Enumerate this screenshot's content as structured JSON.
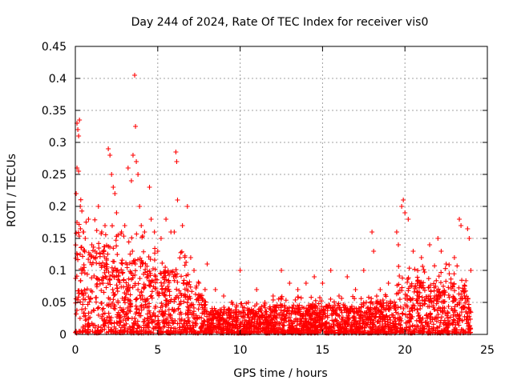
{
  "chart_data": {
    "type": "scatter",
    "title": "Day 244 of 2024, Rate Of TEC Index for receiver vis0",
    "xlabel": "GPS time / hours",
    "ylabel": "ROTI / TECUs",
    "xlim": [
      0,
      25
    ],
    "ylim": [
      0,
      0.45
    ],
    "xticks": [
      0,
      5,
      10,
      15,
      20,
      25
    ],
    "xtick_labels": [
      "0",
      "5",
      "10",
      "15",
      "20",
      "25"
    ],
    "yticks": [
      0,
      0.05,
      0.1,
      0.15,
      0.2,
      0.25,
      0.3,
      0.35,
      0.4,
      0.45
    ],
    "ytick_labels": [
      "0",
      "0.05",
      "0.1",
      "0.15",
      "0.2",
      "0.25",
      "0.3",
      "0.35",
      "0.4",
      "0.45"
    ],
    "grid": true,
    "marker": "+",
    "color": "#ff0000",
    "series": [
      {
        "name": "ROTI",
        "points": [
          [
            0.1,
            0.33
          ],
          [
            0.15,
            0.32
          ],
          [
            0.2,
            0.31
          ],
          [
            0.25,
            0.335
          ],
          [
            0.1,
            0.26
          ],
          [
            0.2,
            0.255
          ],
          [
            0.05,
            0.22
          ],
          [
            0.3,
            0.2
          ],
          [
            0.1,
            0.175
          ],
          [
            0.5,
            0.16
          ],
          [
            0.6,
            0.15
          ],
          [
            0.8,
            0.18
          ],
          [
            1.0,
            0.14
          ],
          [
            1.2,
            0.13
          ],
          [
            1.4,
            0.2
          ],
          [
            1.6,
            0.16
          ],
          [
            1.8,
            0.17
          ],
          [
            2.0,
            0.29
          ],
          [
            2.1,
            0.28
          ],
          [
            2.2,
            0.25
          ],
          [
            2.3,
            0.23
          ],
          [
            2.4,
            0.22
          ],
          [
            2.5,
            0.19
          ],
          [
            2.8,
            0.16
          ],
          [
            3.0,
            0.17
          ],
          [
            3.2,
            0.26
          ],
          [
            3.4,
            0.24
          ],
          [
            3.5,
            0.28
          ],
          [
            3.6,
            0.405
          ],
          [
            3.65,
            0.325
          ],
          [
            3.7,
            0.27
          ],
          [
            3.8,
            0.25
          ],
          [
            3.9,
            0.2
          ],
          [
            4.0,
            0.17
          ],
          [
            4.2,
            0.16
          ],
          [
            4.5,
            0.23
          ],
          [
            4.6,
            0.18
          ],
          [
            4.8,
            0.16
          ],
          [
            5.0,
            0.13
          ],
          [
            5.2,
            0.15
          ],
          [
            5.5,
            0.18
          ],
          [
            5.8,
            0.16
          ],
          [
            6.0,
            0.16
          ],
          [
            6.1,
            0.285
          ],
          [
            6.15,
            0.27
          ],
          [
            6.2,
            0.21
          ],
          [
            6.5,
            0.17
          ],
          [
            6.8,
            0.2
          ],
          [
            7.0,
            0.12
          ],
          [
            7.2,
            0.1
          ],
          [
            7.5,
            0.08
          ],
          [
            8.0,
            0.11
          ],
          [
            8.5,
            0.07
          ],
          [
            9.0,
            0.06
          ],
          [
            9.5,
            0.05
          ],
          [
            10.0,
            0.1
          ],
          [
            10.5,
            0.05
          ],
          [
            11.0,
            0.07
          ],
          [
            11.5,
            0.05
          ],
          [
            12.0,
            0.06
          ],
          [
            12.5,
            0.1
          ],
          [
            13.0,
            0.08
          ],
          [
            13.5,
            0.07
          ],
          [
            14.0,
            0.08
          ],
          [
            14.5,
            0.09
          ],
          [
            15.0,
            0.08
          ],
          [
            15.5,
            0.1
          ],
          [
            16.0,
            0.06
          ],
          [
            16.5,
            0.09
          ],
          [
            17.0,
            0.07
          ],
          [
            17.5,
            0.1
          ],
          [
            18.0,
            0.16
          ],
          [
            18.1,
            0.13
          ],
          [
            18.5,
            0.07
          ],
          [
            19.0,
            0.08
          ],
          [
            19.5,
            0.16
          ],
          [
            19.6,
            0.14
          ],
          [
            19.8,
            0.2
          ],
          [
            19.9,
            0.21
          ],
          [
            20.0,
            0.19
          ],
          [
            20.2,
            0.18
          ],
          [
            20.5,
            0.13
          ],
          [
            21.0,
            0.12
          ],
          [
            21.5,
            0.14
          ],
          [
            22.0,
            0.15
          ],
          [
            22.2,
            0.13
          ],
          [
            22.5,
            0.11
          ],
          [
            23.0,
            0.12
          ],
          [
            23.3,
            0.18
          ],
          [
            23.4,
            0.17
          ],
          [
            23.8,
            0.165
          ],
          [
            23.9,
            0.15
          ],
          [
            24.0,
            0.1
          ]
        ]
      }
    ]
  }
}
